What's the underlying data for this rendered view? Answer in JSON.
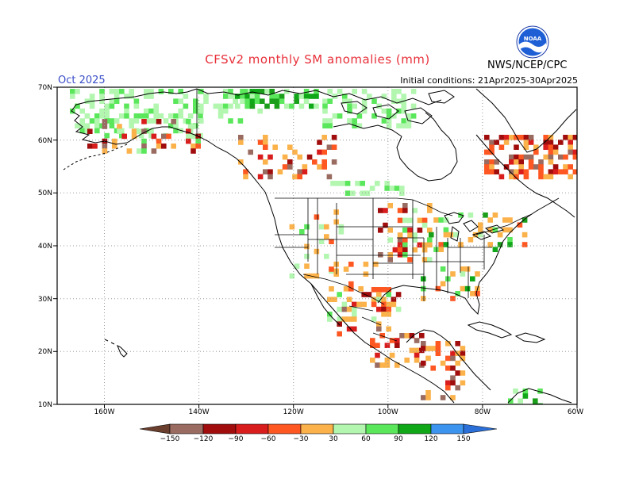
{
  "header": {
    "title": "CFSv2 monthly SM anomalies (mm)",
    "agency": "NWS/NCEP/CPC",
    "valid_label": "Oct 2025",
    "initial_conditions": "Initial conditions: 21Apr2025-30Apr2025",
    "logo_text": "NOAA"
  },
  "map": {
    "lat_range": [
      10,
      70
    ],
    "lon_range": [
      -170,
      -60
    ],
    "lat_ticks": [
      "70N",
      "60N",
      "50N",
      "40N",
      "30N",
      "20N",
      "10N"
    ],
    "lon_ticks": [
      "160W",
      "140W",
      "120W",
      "100W",
      "80W",
      "60W"
    ],
    "grid": "dotted"
  },
  "legend": {
    "labels": [
      "−150",
      "−120",
      "−90",
      "−60",
      "−30",
      "30",
      "60",
      "90",
      "120",
      "150"
    ],
    "colors": {
      "lt_m150": "#6b3f2e",
      "m150_m120": "#9a6b60",
      "m120_m90": "#a10d0d",
      "m90_m60": "#d91c1c",
      "m60_m30": "#ff5722",
      "m30_0": "#fbb24a",
      "p30_p60": "#b2f6b0",
      "p60_p90": "#5be75b",
      "p90_p120": "#10a818",
      "p120_p150": "#1b9f1b",
      "p150_plus": "#3c94ee",
      "gt_p150": "#2b6fd8"
    }
  }
}
